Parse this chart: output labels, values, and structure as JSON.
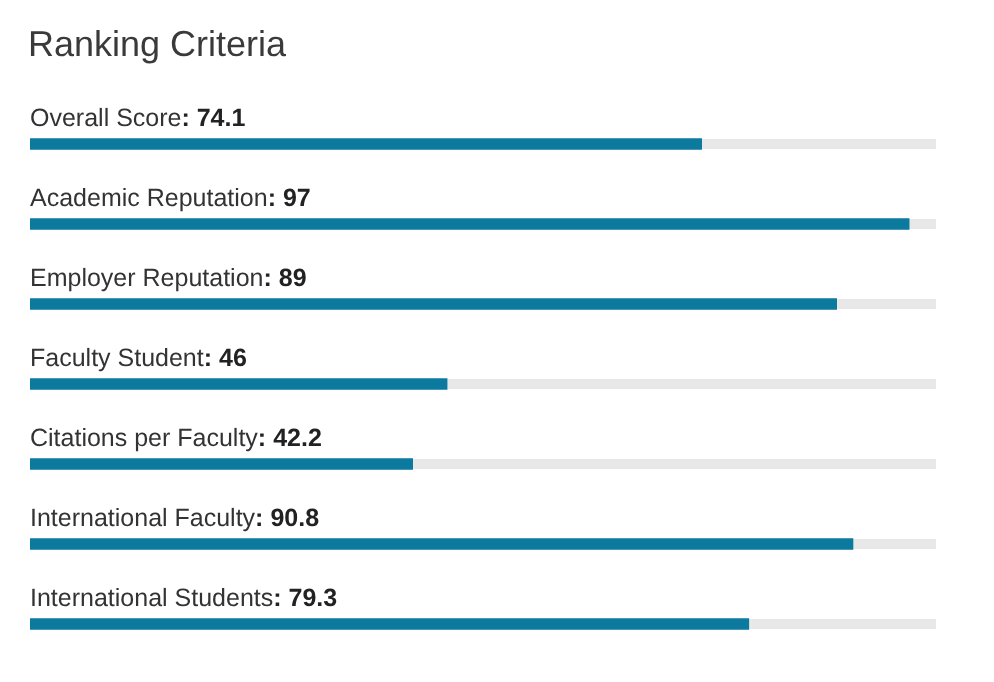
{
  "chart_data": {
    "type": "bar",
    "orientation": "horizontal",
    "title": "Ranking Criteria",
    "categories": [
      "Overall Score",
      "Academic Reputation",
      "Employer Reputation",
      "Faculty Student",
      "Citations per Faculty",
      "International Faculty",
      "International Students"
    ],
    "values": [
      74.1,
      97,
      89,
      46,
      42.2,
      90.8,
      79.3
    ],
    "value_labels": [
      ": 74.1",
      ": 97",
      ": 89",
      ": 46",
      ": 42.2",
      ": 90.8",
      ": 79.3"
    ],
    "color": "#0b7a9e",
    "xlim": [
      0,
      100
    ],
    "tick_labels": false,
    "legend": false
  }
}
